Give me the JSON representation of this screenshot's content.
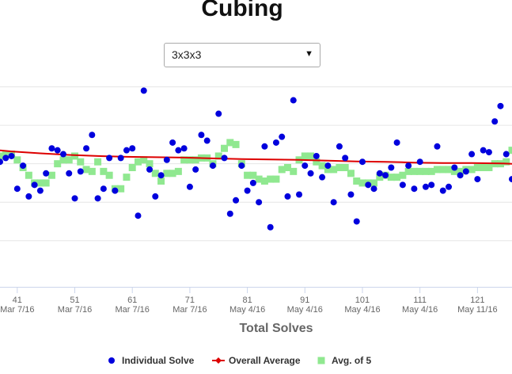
{
  "title": "Cubing",
  "puzzle_select": {
    "value": "3x3x3"
  },
  "colors": {
    "individual": "#0000dd",
    "overall": "#dd0000",
    "avg5": "#90e890"
  },
  "chart_data": {
    "type": "scatter",
    "title": "Cubing",
    "xlabel": "Total Solves",
    "ylabel": "",
    "grid": true,
    "legend_position": "bottom",
    "xlim": [
      38,
      127
    ],
    "ylim": [
      -12,
      43
    ],
    "x_ticks": [
      {
        "x": 41,
        "label": "41",
        "date": "Mar 7/16"
      },
      {
        "x": 51,
        "label": "51",
        "date": "Mar 7/16"
      },
      {
        "x": 61,
        "label": "61",
        "date": "Mar 7/16"
      },
      {
        "x": 71,
        "label": "71",
        "date": "Mar 7/16"
      },
      {
        "x": 81,
        "label": "81",
        "date": "May 4/16"
      },
      {
        "x": 91,
        "label": "91",
        "date": "May 4/16"
      },
      {
        "x": 101,
        "label": "101",
        "date": "May 4/16"
      },
      {
        "x": 111,
        "label": "111",
        "date": "May 4/16"
      },
      {
        "x": 121,
        "label": "121",
        "date": "May 11/16"
      }
    ],
    "y_gridlines": [
      0,
      10,
      20,
      30,
      40
    ],
    "series": [
      {
        "name": "Individual Solve",
        "marker": "circle",
        "x": [
          38,
          39,
          40,
          41,
          42,
          43,
          44,
          45,
          46,
          47,
          48,
          49,
          50,
          51,
          52,
          53,
          54,
          55,
          56,
          57,
          58,
          59,
          60,
          61,
          62,
          63,
          64,
          65,
          66,
          67,
          68,
          69,
          70,
          71,
          72,
          73,
          74,
          75,
          76,
          77,
          78,
          79,
          80,
          81,
          82,
          83,
          84,
          85,
          86,
          87,
          88,
          89,
          90,
          91,
          92,
          93,
          94,
          95,
          96,
          97,
          98,
          99,
          100,
          101,
          102,
          103,
          104,
          105,
          106,
          107,
          108,
          109,
          110,
          111,
          112,
          113,
          114,
          115,
          116,
          117,
          118,
          119,
          120,
          121,
          122,
          123,
          124,
          125,
          126,
          127
        ],
        "y": [
          20.5,
          21.5,
          22,
          13.5,
          19.5,
          11.5,
          14.5,
          13,
          17.5,
          24,
          23.5,
          22.5,
          17.5,
          11,
          18,
          24,
          27.5,
          11,
          13.5,
          21.5,
          13,
          21.5,
          23.5,
          24,
          6.5,
          39,
          18.5,
          11.5,
          17,
          21,
          25.5,
          23.5,
          24,
          14,
          18.5,
          27.5,
          26,
          19.5,
          33,
          21.5,
          7,
          10.5,
          19.5,
          13,
          15,
          10,
          24.5,
          3.5,
          25.5,
          27,
          11.5,
          36.5,
          12,
          19.5,
          17.5,
          22,
          16.5,
          19.5,
          10,
          24.5,
          21.5,
          12,
          5,
          20.5,
          14.5,
          13.5,
          17.5,
          17,
          19,
          25.5,
          14.5,
          19.5,
          13.5,
          20.5,
          14,
          14.5,
          24.5,
          13,
          14,
          19,
          17,
          18,
          22.5,
          16,
          23.5,
          23,
          31,
          35,
          22.5,
          16
        ]
      },
      {
        "name": "Overall Average",
        "marker": "line-diamond",
        "x": [
          38,
          40,
          45,
          50,
          55,
          60,
          65,
          70,
          75,
          80,
          85,
          90,
          95,
          100,
          105,
          110,
          115,
          120,
          125,
          127
        ],
        "y": [
          23.5,
          23.2,
          22.7,
          22.3,
          22.0,
          21.8,
          21.7,
          21.6,
          21.4,
          21.2,
          21.1,
          21.0,
          20.8,
          20.6,
          20.5,
          20.3,
          20.2,
          20.2,
          20.1,
          20.0
        ]
      },
      {
        "name": "Avg. of 5",
        "marker": "square",
        "x": [
          38,
          39,
          40,
          41,
          42,
          43,
          44,
          45,
          46,
          47,
          48,
          49,
          50,
          51,
          52,
          53,
          54,
          55,
          56,
          57,
          58,
          59,
          60,
          61,
          62,
          63,
          64,
          65,
          66,
          67,
          68,
          69,
          70,
          71,
          72,
          73,
          74,
          75,
          76,
          77,
          78,
          79,
          80,
          81,
          82,
          83,
          84,
          85,
          86,
          87,
          88,
          89,
          90,
          91,
          92,
          93,
          94,
          95,
          96,
          97,
          98,
          99,
          100,
          101,
          102,
          103,
          104,
          105,
          106,
          107,
          108,
          109,
          110,
          111,
          112,
          113,
          114,
          115,
          116,
          117,
          118,
          119,
          120,
          121,
          122,
          123,
          124,
          125,
          126,
          127
        ],
        "y": [
          22,
          22.5,
          22.5,
          21,
          19,
          17,
          15,
          15,
          15,
          17,
          20,
          21,
          21,
          22,
          20.5,
          18.5,
          18,
          20.5,
          18,
          17,
          13.5,
          13.5,
          16.5,
          19,
          20.5,
          21,
          20,
          17.5,
          15.5,
          17.5,
          17.5,
          18,
          21,
          21,
          21,
          21.5,
          21.5,
          20,
          22,
          24,
          25.5,
          25,
          20,
          17,
          17,
          16,
          15.5,
          16,
          16,
          18.5,
          19,
          18,
          21,
          22,
          22,
          20.5,
          19.5,
          18.5,
          18.5,
          19,
          19,
          17.5,
          15.5,
          15,
          15,
          15,
          16.5,
          17,
          16.5,
          16.5,
          17,
          18,
          18,
          18,
          18,
          18,
          18.5,
          18.5,
          18.5,
          18,
          18,
          18.5,
          18.5,
          19,
          19,
          19,
          20,
          20,
          20.5,
          23.5
        ]
      }
    ]
  }
}
